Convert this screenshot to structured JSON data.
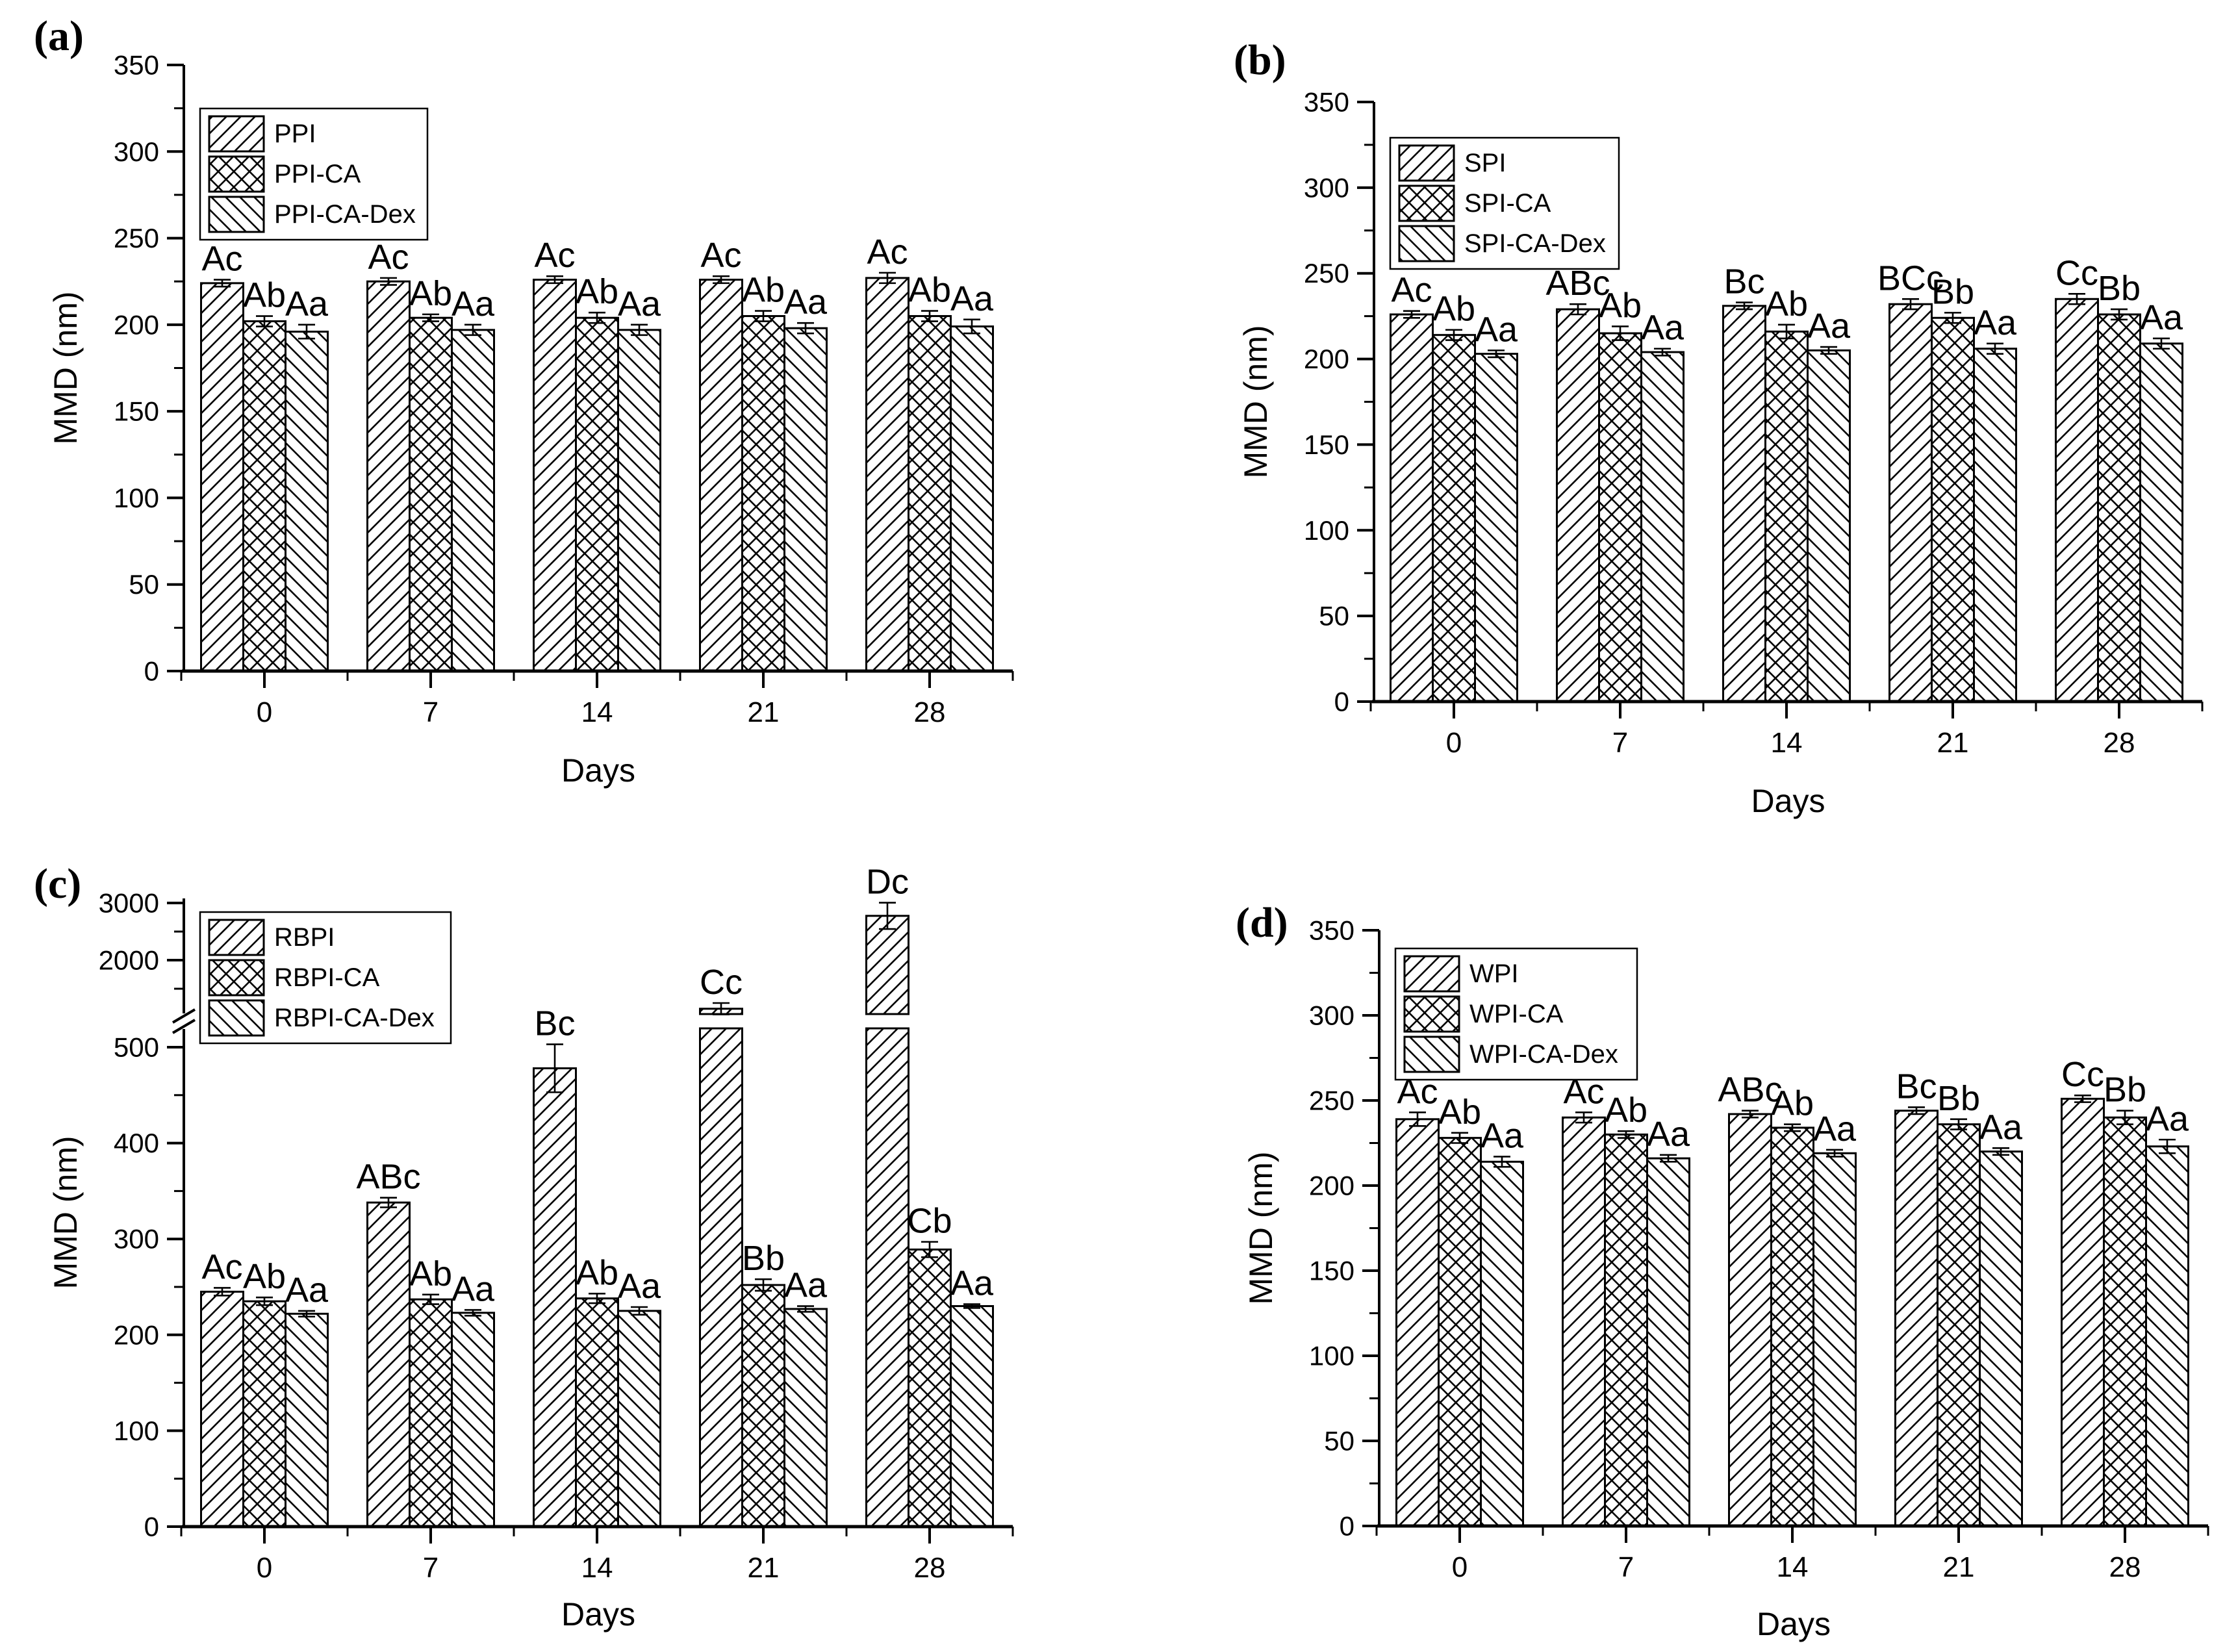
{
  "figure": {
    "background": "#ffffff",
    "ink_color": "#000000"
  },
  "chart_data": [
    {
      "panel": "(a)",
      "type": "bar",
      "xlabel": "Days",
      "ylabel": "MMD (nm)",
      "categories": [
        "0",
        "7",
        "14",
        "21",
        "28"
      ],
      "y_axis": {
        "min": 0,
        "max": 350,
        "majors": [
          {
            "value": 0,
            "label": "0"
          },
          {
            "value": 50,
            "label": "50"
          },
          {
            "value": 100,
            "label": "100"
          },
          {
            "value": 150,
            "label": "150"
          },
          {
            "value": 200,
            "label": "200"
          },
          {
            "value": 250,
            "label": "250"
          },
          {
            "value": 300,
            "label": "300"
          },
          {
            "value": 350,
            "label": "350"
          }
        ],
        "minors": [
          25,
          75,
          125,
          175,
          225,
          275,
          325
        ]
      },
      "legend_position": "top-left",
      "series": [
        {
          "name": "PPI",
          "hatch": "diagonal-up",
          "values": [
            224,
            225,
            226,
            226,
            227
          ],
          "errors": [
            2,
            2,
            2,
            2,
            3
          ],
          "sig_labels": [
            "Ac",
            "Ac",
            "Ac",
            "Ac",
            "Ac"
          ]
        },
        {
          "name": "PPI-CA",
          "hatch": "crosshatch",
          "values": [
            202,
            204,
            204,
            205,
            205
          ],
          "errors": [
            3,
            2,
            3,
            3,
            3
          ],
          "sig_labels": [
            "Ab",
            "Ab",
            "Ab",
            "Ab",
            "Ab"
          ]
        },
        {
          "name": "PPI-CA-Dex",
          "hatch": "diagonal-down",
          "values": [
            196,
            197,
            197,
            198,
            199
          ],
          "errors": [
            4,
            3,
            3,
            3,
            4
          ],
          "sig_labels": [
            "Aa",
            "Aa",
            "Aa",
            "Aa",
            "Aa"
          ]
        }
      ]
    },
    {
      "panel": "(b)",
      "type": "bar",
      "xlabel": "Days",
      "ylabel": "MMD (nm)",
      "categories": [
        "0",
        "7",
        "14",
        "21",
        "28"
      ],
      "y_axis": {
        "min": 0,
        "max": 350,
        "majors": [
          {
            "value": 0,
            "label": "0"
          },
          {
            "value": 50,
            "label": "50"
          },
          {
            "value": 100,
            "label": "100"
          },
          {
            "value": 150,
            "label": "150"
          },
          {
            "value": 200,
            "label": "200"
          },
          {
            "value": 250,
            "label": "250"
          },
          {
            "value": 300,
            "label": "300"
          },
          {
            "value": 350,
            "label": "350"
          }
        ],
        "minors": [
          25,
          75,
          125,
          175,
          225,
          275,
          325
        ]
      },
      "legend_position": "top-left",
      "series": [
        {
          "name": "SPI",
          "hatch": "diagonal-up",
          "values": [
            226,
            229,
            231,
            232,
            235
          ],
          "errors": [
            2,
            3,
            2,
            3,
            3
          ],
          "sig_labels": [
            "Ac",
            "ABc",
            "Bc",
            "BCc",
            "Cc"
          ]
        },
        {
          "name": "SPI-CA",
          "hatch": "crosshatch",
          "values": [
            214,
            215,
            216,
            224,
            226
          ],
          "errors": [
            3,
            4,
            4,
            3,
            3
          ],
          "sig_labels": [
            "Ab",
            "Ab",
            "Ab",
            "Bb",
            "Bb"
          ]
        },
        {
          "name": "SPI-CA-Dex",
          "hatch": "diagonal-down",
          "values": [
            203,
            204,
            205,
            206,
            209
          ],
          "errors": [
            2,
            2,
            2,
            3,
            3
          ],
          "sig_labels": [
            "Aa",
            "Aa",
            "Aa",
            "Aa",
            "Aa"
          ]
        }
      ]
    },
    {
      "panel": "(c)",
      "type": "bar",
      "xlabel": "Days",
      "ylabel": "MMD (nm)",
      "categories": [
        "0",
        "7",
        "14",
        "21",
        "28"
      ],
      "y_axis": {
        "min": 0,
        "max": 3100,
        "broken": true,
        "lower_segment": {
          "min": 0,
          "max": 510
        },
        "upper_segment": {
          "min": 1100,
          "max": 3100
        },
        "majors": [
          {
            "value": 0,
            "label": "0"
          },
          {
            "value": 100,
            "label": "100"
          },
          {
            "value": 200,
            "label": "200"
          },
          {
            "value": 300,
            "label": "300"
          },
          {
            "value": 400,
            "label": "400"
          },
          {
            "value": 500,
            "label": "500"
          },
          {
            "value": 2000,
            "label": "2000"
          },
          {
            "value": 3000,
            "label": "3000"
          }
        ],
        "minors": [
          50,
          150,
          250,
          350,
          450,
          1500,
          2500
        ]
      },
      "legend_position": "top-left",
      "series": [
        {
          "name": "RBPI",
          "hatch": "diagonal-up",
          "values": [
            245,
            338,
            478,
            1150,
            2775
          ],
          "errors": [
            4,
            5,
            25,
            100,
            230
          ],
          "sig_labels": [
            "Ac",
            "ABc",
            "Bc",
            "Cc",
            "Dc"
          ]
        },
        {
          "name": "RBPI-CA",
          "hatch": "crosshatch",
          "values": [
            235,
            237,
            238,
            252,
            289
          ],
          "errors": [
            4,
            5,
            5,
            6,
            8
          ],
          "sig_labels": [
            "Ab",
            "Ab",
            "Ab",
            "Bb",
            "Cb"
          ]
        },
        {
          "name": "RBPI-CA-Dex",
          "hatch": "diagonal-down",
          "values": [
            222,
            223,
            225,
            227,
            230
          ],
          "errors": [
            3,
            3,
            4,
            3,
            2
          ],
          "sig_labels": [
            "Aa",
            "Aa",
            "Aa",
            "Aa",
            "Aa"
          ]
        }
      ]
    },
    {
      "panel": "(d)",
      "type": "bar",
      "xlabel": "Days",
      "ylabel": "MMD (nm)",
      "categories": [
        "0",
        "7",
        "14",
        "21",
        "28"
      ],
      "y_axis": {
        "min": 0,
        "max": 350,
        "majors": [
          {
            "value": 0,
            "label": "0"
          },
          {
            "value": 50,
            "label": "50"
          },
          {
            "value": 100,
            "label": "100"
          },
          {
            "value": 150,
            "label": "150"
          },
          {
            "value": 200,
            "label": "200"
          },
          {
            "value": 250,
            "label": "250"
          },
          {
            "value": 300,
            "label": "300"
          },
          {
            "value": 350,
            "label": "350"
          }
        ],
        "minors": [
          25,
          75,
          125,
          175,
          225,
          275,
          325
        ]
      },
      "legend_position": "top-left",
      "series": [
        {
          "name": "WPI",
          "hatch": "diagonal-up",
          "values": [
            239,
            240,
            242,
            244,
            251
          ],
          "errors": [
            4,
            3,
            2,
            2,
            2
          ],
          "sig_labels": [
            "Ac",
            "Ac",
            "ABc",
            "Bc",
            "Cc"
          ]
        },
        {
          "name": "WPI-CA",
          "hatch": "crosshatch",
          "values": [
            228,
            230,
            234,
            236,
            240
          ],
          "errors": [
            3,
            2,
            2,
            3,
            4
          ],
          "sig_labels": [
            "Ab",
            "Ab",
            "Ab",
            "Bb",
            "Bb"
          ]
        },
        {
          "name": "WPI-CA-Dex",
          "hatch": "diagonal-down",
          "values": [
            214,
            216,
            219,
            220,
            223
          ],
          "errors": [
            3,
            2,
            2,
            2,
            4
          ],
          "sig_labels": [
            "Aa",
            "Aa",
            "Aa",
            "Aa",
            "Aa"
          ]
        }
      ]
    }
  ]
}
